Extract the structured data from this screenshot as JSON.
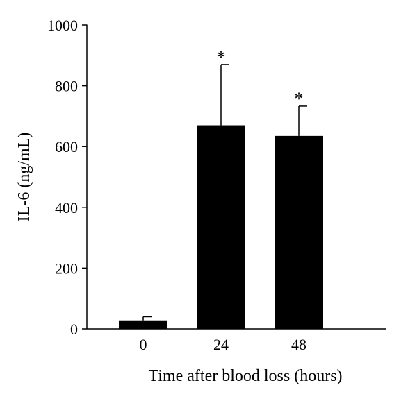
{
  "chart_data": {
    "type": "bar",
    "categories": [
      "0",
      "24",
      "48"
    ],
    "series": [
      {
        "values": [
          28,
          670,
          635
        ],
        "error_upper": [
          12,
          200,
          98
        ]
      }
    ],
    "annotations": [
      "",
      "*",
      "*"
    ],
    "title": "",
    "xlabel": "Time after blood loss (hours)",
    "ylabel": "IL-6 (ng/mL)",
    "ylim": [
      0,
      1000
    ],
    "yticks": [
      0,
      200,
      400,
      600,
      800,
      1000
    ],
    "grid": false,
    "legend": "none",
    "colors": {
      "bar": "#000000",
      "axis": "#000000",
      "background": "#ffffff"
    }
  }
}
